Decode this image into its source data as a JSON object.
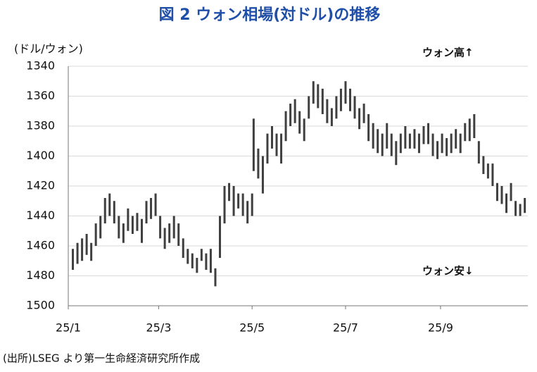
{
  "chart_data": {
    "type": "range",
    "title": "図 2 ウォン相場(対ドル)の推移",
    "y_label": "(ドル/ウォン)",
    "annotations": [
      "ウォン高↑",
      "ウォン安↓"
    ],
    "source": "(出所)LSEG より第一生命経済研究所作成",
    "color": "#3f3f3f",
    "x": [
      3,
      6,
      9,
      12,
      15,
      18,
      21,
      24,
      27,
      30,
      33,
      36,
      39,
      42,
      45,
      48,
      51,
      54,
      57,
      60,
      63,
      66,
      69,
      72,
      75,
      78,
      81,
      84,
      87,
      90,
      93,
      96,
      99,
      102,
      105,
      108,
      111,
      114,
      117,
      120,
      121,
      124,
      127,
      130,
      133,
      136,
      139,
      142,
      145,
      148,
      151,
      154,
      157,
      160,
      163,
      166,
      169,
      172,
      175,
      178,
      181,
      184,
      187,
      190,
      193,
      196,
      199,
      202,
      205,
      208,
      211,
      214,
      217,
      220,
      223,
      226,
      229,
      232,
      235,
      238,
      241,
      244,
      247,
      250,
      253,
      256,
      259,
      262,
      265,
      268,
      271,
      274,
      277,
      280,
      283,
      286,
      289,
      292,
      295,
      298
    ],
    "min": [
      1462,
      1458,
      1455,
      1452,
      1458,
      1445,
      1440,
      1428,
      1425,
      1430,
      1440,
      1445,
      1435,
      1440,
      1438,
      1442,
      1430,
      1428,
      1425,
      1440,
      1448,
      1445,
      1440,
      1445,
      1455,
      1462,
      1465,
      1468,
      1462,
      1465,
      1462,
      1475,
      1440,
      1420,
      1418,
      1420,
      1425,
      1425,
      1430,
      1425,
      1375,
      1395,
      1400,
      1385,
      1380,
      1385,
      1385,
      1370,
      1365,
      1362,
      1370,
      1375,
      1360,
      1350,
      1352,
      1355,
      1362,
      1368,
      1360,
      1355,
      1350,
      1355,
      1360,
      1368,
      1365,
      1372,
      1378,
      1382,
      1385,
      1378,
      1385,
      1390,
      1385,
      1380,
      1385,
      1382,
      1385,
      1380,
      1378,
      1385,
      1390,
      1385,
      1388,
      1385,
      1382,
      1385,
      1378,
      1375,
      1372,
      1390,
      1400,
      1405,
      1405,
      1418,
      1420,
      1425,
      1418,
      1430,
      1432,
      1428
    ],
    "max": [
      1476,
      1472,
      1470,
      1466,
      1470,
      1460,
      1455,
      1445,
      1440,
      1445,
      1455,
      1458,
      1450,
      1452,
      1450,
      1458,
      1445,
      1442,
      1440,
      1455,
      1462,
      1458,
      1455,
      1460,
      1468,
      1472,
      1475,
      1478,
      1470,
      1476,
      1478,
      1487,
      1468,
      1445,
      1430,
      1440,
      1435,
      1440,
      1445,
      1440,
      1410,
      1415,
      1425,
      1405,
      1395,
      1400,
      1405,
      1390,
      1380,
      1378,
      1385,
      1390,
      1375,
      1365,
      1368,
      1372,
      1378,
      1380,
      1375,
      1370,
      1365,
      1370,
      1375,
      1382,
      1378,
      1390,
      1395,
      1398,
      1400,
      1395,
      1400,
      1406,
      1398,
      1395,
      1395,
      1395,
      1398,
      1392,
      1392,
      1400,
      1402,
      1398,
      1400,
      1398,
      1395,
      1398,
      1390,
      1390,
      1388,
      1405,
      1412,
      1415,
      1420,
      1430,
      1432,
      1438,
      1430,
      1440,
      1440,
      1438
    ],
    "xlim": [
      0,
      300
    ],
    "xticks": [
      {
        "value": 0,
        "label": "25/1"
      },
      {
        "value": 59,
        "label": "25/3"
      },
      {
        "value": 120,
        "label": "25/5"
      },
      {
        "value": 181,
        "label": "25/7"
      },
      {
        "value": 243,
        "label": "25/9"
      }
    ],
    "ylim": [
      1340,
      1500
    ],
    "yticks": [
      1340,
      1360,
      1380,
      1400,
      1420,
      1440,
      1460,
      1480,
      1500
    ],
    "y_inverted": true,
    "grid": true
  }
}
